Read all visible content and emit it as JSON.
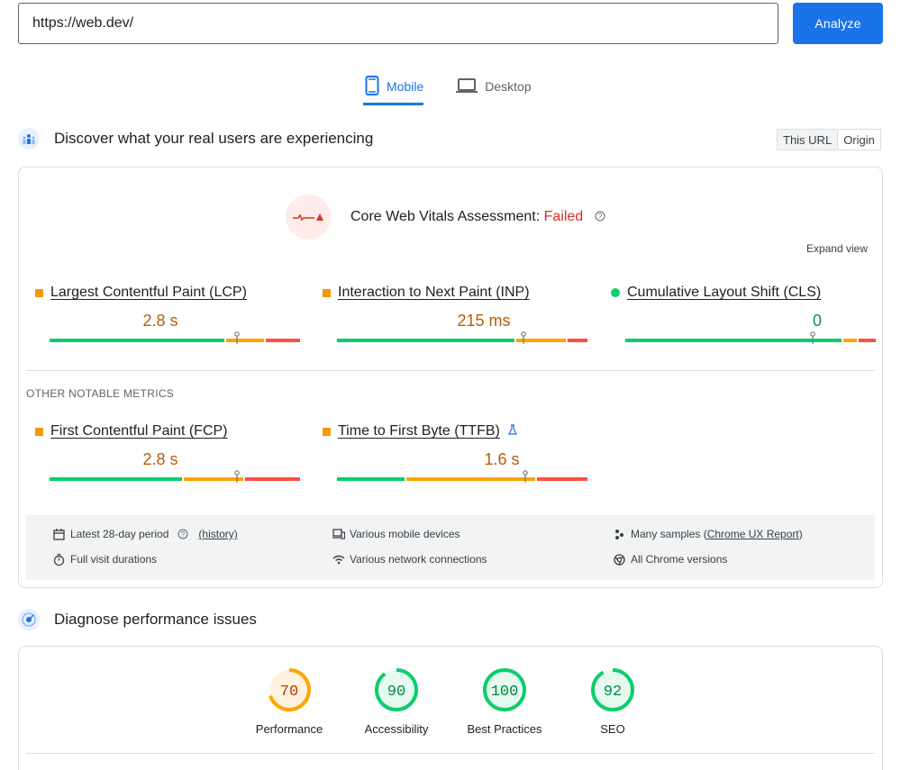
{
  "search": {
    "url": "https://web.dev/",
    "analyze_label": "Analyze"
  },
  "tabs": [
    {
      "label": "Mobile",
      "active": true
    },
    {
      "label": "Desktop",
      "active": false
    }
  ],
  "field": {
    "title": "Discover what your real users are experiencing",
    "toggle": {
      "this_url": "This URL",
      "origin": "Origin"
    },
    "assessment_label": "Core Web Vitals Assessment: ",
    "assessment_status": "Failed",
    "expand_label": "Expand view",
    "metrics": [
      {
        "label": "Largest Contentful Paint (LCP)",
        "value": "2.8 s",
        "status": "needs-improvement",
        "marker_fraction": 0.75
      },
      {
        "label": "Interaction to Next Paint (INP)",
        "value": "215 ms",
        "status": "needs-improvement",
        "marker_fraction": 0.74
      },
      {
        "label": "Cumulative Layout Shift (CLS)",
        "value": "0",
        "status": "good",
        "marker_fraction": 0.75
      }
    ],
    "other_title": "OTHER NOTABLE METRICS",
    "other_metrics": [
      {
        "label": "First Contentful Paint (FCP)",
        "value": "2.8 s",
        "status": "needs-improvement",
        "marker_fraction": 0.75
      },
      {
        "label": "Time to First Byte (TTFB)",
        "value": "1.6 s",
        "status": "needs-improvement",
        "marker_fraction": 0.76
      }
    ],
    "info": {
      "period": "Latest 28-day period",
      "history": "(history)",
      "devices": "Various mobile devices",
      "samples_prefix": "Many samples (",
      "samples_link": "Chrome UX Report",
      "samples_suffix": ")",
      "durations": "Full visit durations",
      "network": "Various network connections",
      "chrome": "All Chrome versions"
    }
  },
  "lab": {
    "title": "Diagnose performance issues",
    "scores": [
      {
        "label": "Performance",
        "score": "70",
        "color": "#ffa400",
        "text_color": "#c33300",
        "fraction": 0.7
      },
      {
        "label": "Accessibility",
        "score": "90",
        "color": "#0cce6b",
        "text_color": "#018642",
        "fraction": 0.9
      },
      {
        "label": "Best Practices",
        "score": "100",
        "color": "#0cce6b",
        "text_color": "#018642",
        "fraction": 1.0
      },
      {
        "label": "SEO",
        "score": "92",
        "color": "#0cce6b",
        "text_color": "#018642",
        "fraction": 0.92
      }
    ]
  },
  "colors": {
    "accent": "#1a73e8",
    "good": "#0cce6b",
    "average": "#ffa400",
    "poor": "#ff4e42",
    "failed": "#d93025"
  }
}
